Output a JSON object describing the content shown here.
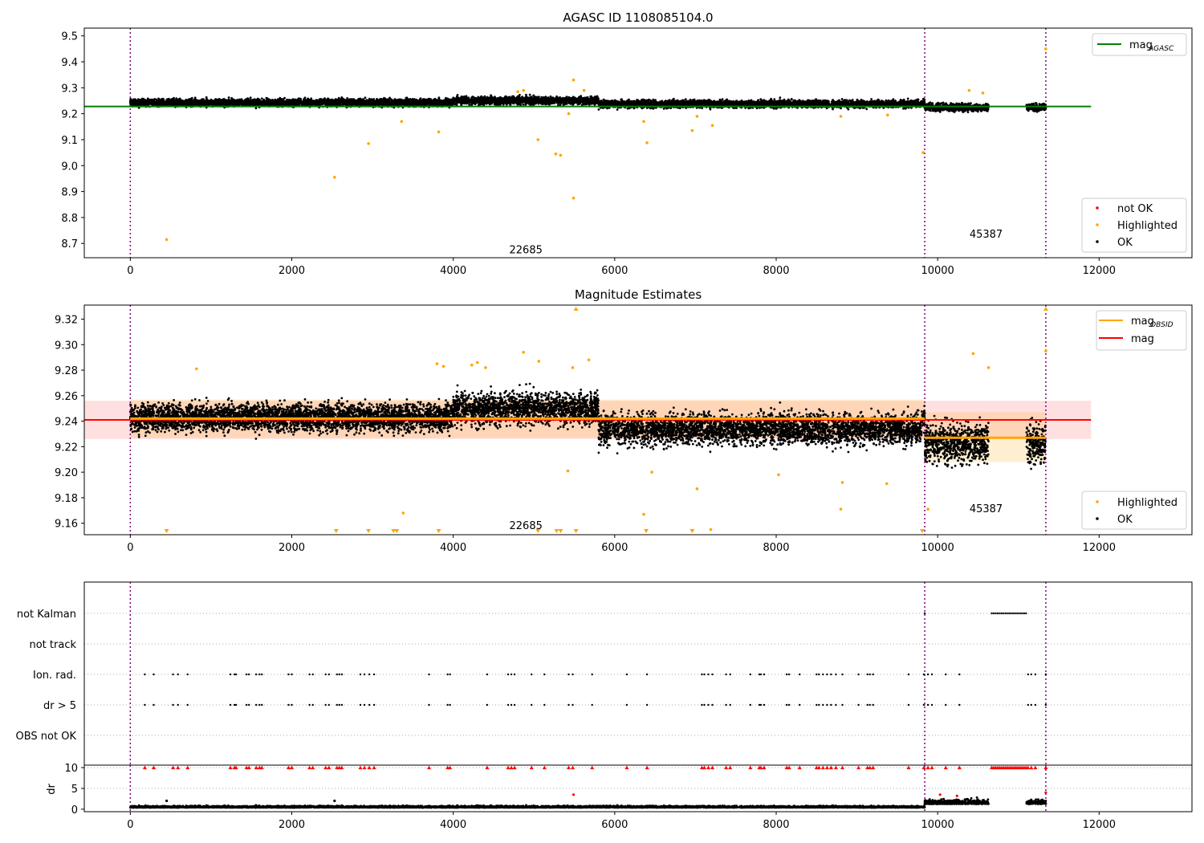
{
  "chart_data": [
    {
      "id": "agasc",
      "type": "scatter",
      "title": "AGASC ID 1108085104.0",
      "xlim": [
        -570,
        13150
      ],
      "ylim": [
        8.645,
        9.53
      ],
      "xticks": [
        0,
        2000,
        4000,
        6000,
        8000,
        10000,
        12000
      ],
      "xtick_labels": [
        "0",
        "2000",
        "4000",
        "6000",
        "8000",
        "10000",
        "12000"
      ],
      "yticks": [
        8.7,
        8.8,
        8.9,
        9.0,
        9.1,
        9.2,
        9.3,
        9.4,
        9.5
      ],
      "ytick_labels": [
        "8.7",
        "8.8",
        "8.9",
        "9.0",
        "9.1",
        "9.2",
        "9.3",
        "9.4",
        "9.5"
      ],
      "vlines": [
        0,
        9840,
        11340
      ],
      "hline": {
        "name_main": "mag",
        "name_sub": "AGASC",
        "y": 9.228,
        "x_start": -570,
        "x_end": 11900,
        "color": "#008000"
      },
      "annotations": [
        {
          "x": 4900,
          "y": 8.675,
          "text": "22685"
        },
        {
          "x": 10600,
          "y": 8.735,
          "text": "45387"
        }
      ],
      "ok_band": {
        "segments": [
          [
            0,
            9840
          ],
          [
            9840,
            10630
          ],
          [
            11100,
            11340
          ]
        ],
        "center": 9.243,
        "spread": 0.028,
        "color": "#000000"
      },
      "legends": {
        "top": [
          {
            "label_main": "mag",
            "label_sub": "AGASC",
            "color": "#008000",
            "kind": "line"
          }
        ],
        "bottom": [
          {
            "label": "not OK",
            "color": "#ff0000",
            "kind": "dot"
          },
          {
            "label": "Highlighted",
            "color": "#ffa500",
            "kind": "dot"
          },
          {
            "label": "OK",
            "color": "#000000",
            "kind": "dot"
          }
        ]
      },
      "highlighted": [
        [
          450,
          8.715
        ],
        [
          2530,
          8.955
        ],
        [
          2950,
          9.085
        ],
        [
          3360,
          9.17
        ],
        [
          3820,
          9.13
        ],
        [
          5050,
          9.1
        ],
        [
          5270,
          9.045
        ],
        [
          5330,
          9.04
        ],
        [
          5490,
          8.875
        ],
        [
          5490,
          9.33
        ],
        [
          5430,
          9.2
        ],
        [
          6360,
          9.17
        ],
        [
          6400,
          9.088
        ],
        [
          6960,
          9.135
        ],
        [
          7210,
          9.155
        ],
        [
          7020,
          9.19
        ],
        [
          9820,
          9.05
        ],
        [
          10390,
          9.29
        ],
        [
          10560,
          9.28
        ],
        [
          8800,
          9.19
        ],
        [
          11340,
          9.45
        ],
        [
          4870,
          9.29
        ],
        [
          4800,
          9.285
        ],
        [
          5620,
          9.29
        ],
        [
          9380,
          9.195
        ]
      ]
    },
    {
      "id": "estimates",
      "type": "scatter",
      "title": "Magnitude Estimates",
      "xlim": [
        -570,
        13150
      ],
      "ylim": [
        9.151,
        9.331
      ],
      "xticks": [
        0,
        2000,
        4000,
        6000,
        8000,
        10000,
        12000
      ],
      "xtick_labels": [
        "0",
        "2000",
        "4000",
        "6000",
        "8000",
        "10000",
        "12000"
      ],
      "yticks": [
        9.16,
        9.18,
        9.2,
        9.22,
        9.24,
        9.26,
        9.28,
        9.3,
        9.32
      ],
      "ytick_labels": [
        "9.16",
        "9.18",
        "9.20",
        "9.22",
        "9.24",
        "9.26",
        "9.28",
        "9.30",
        "9.32"
      ],
      "vlines": [
        0,
        9840,
        11340
      ],
      "mag_line": {
        "name": "mag",
        "y": 9.241,
        "band": [
          9.226,
          9.256
        ],
        "x_start": -570,
        "x_end": 11900,
        "color": "#ff0000"
      },
      "obsid_segments": [
        {
          "x0": 0,
          "x1": 9840,
          "y": 9.242,
          "band": [
            9.227,
            9.257
          ]
        },
        {
          "x0": 9840,
          "x1": 11340,
          "y": 9.227,
          "band": [
            9.208,
            9.247
          ]
        }
      ],
      "annotations": [
        {
          "x": 4900,
          "y": 9.158,
          "text": "22685"
        },
        {
          "x": 10600,
          "y": 9.171,
          "text": "45387"
        }
      ],
      "legends": {
        "top": [
          {
            "label_main": "mag",
            "label_sub": "OBSID",
            "color": "#ffa500",
            "kind": "line"
          },
          {
            "label_main": "mag",
            "label_sub": "",
            "color": "#ff0000",
            "kind": "line"
          }
        ],
        "bottom": [
          {
            "label": "Highlighted",
            "color": "#ffa500",
            "kind": "dot"
          },
          {
            "label": "OK",
            "color": "#000000",
            "kind": "dot"
          }
        ]
      },
      "highlighted": [
        [
          820,
          9.281
        ],
        [
          3380,
          9.168
        ],
        [
          3800,
          9.285
        ],
        [
          3880,
          9.283
        ],
        [
          4230,
          9.284
        ],
        [
          4300,
          9.286
        ],
        [
          4400,
          9.282
        ],
        [
          4870,
          9.294
        ],
        [
          5060,
          9.287
        ],
        [
          5420,
          9.201
        ],
        [
          5480,
          9.282
        ],
        [
          5680,
          9.288
        ],
        [
          6360,
          9.167
        ],
        [
          6460,
          9.2
        ],
        [
          7020,
          9.187
        ],
        [
          7190,
          9.155
        ],
        [
          8030,
          9.198
        ],
        [
          8800,
          9.171
        ],
        [
          8820,
          9.192
        ],
        [
          9370,
          9.191
        ],
        [
          9880,
          9.171
        ],
        [
          10440,
          9.293
        ],
        [
          10630,
          9.282
        ],
        [
          11340,
          9.295
        ]
      ],
      "clipped_low": [
        450,
        2550,
        2950,
        3260,
        3300,
        3820,
        5050,
        5280,
        5330,
        5520,
        6390,
        6960,
        9810
      ],
      "clipped_high": [
        5520,
        11340
      ]
    },
    {
      "id": "flags",
      "type": "scatter",
      "title": "",
      "xlim": [
        -570,
        13150
      ],
      "categories": [
        "not Kalman",
        "not track",
        "Ion. rad.",
        "dr > 5",
        "OBS not OK"
      ],
      "vlines": [
        0,
        9840,
        11340
      ],
      "flag_events": [
        180,
        290,
        530,
        590,
        710,
        1240,
        1290,
        1310,
        1440,
        1470,
        1560,
        1600,
        1630,
        1960,
        2000,
        2220,
        2260,
        2420,
        2460,
        2560,
        2590,
        2620,
        2850,
        2900,
        2960,
        3020,
        3700,
        3930,
        3960,
        4420,
        4680,
        4720,
        4760,
        4970,
        5130,
        5430,
        5480,
        5720,
        6150,
        6400,
        7080,
        7110,
        7160,
        7210,
        7380,
        7430,
        7680,
        7790,
        7810,
        7850,
        8130,
        8160,
        8290,
        8500,
        8530,
        8580,
        8630,
        8680,
        8740,
        8820,
        9020,
        9130,
        9160,
        9200,
        9640,
        9830,
        9880,
        9930,
        10100,
        10270
      ],
      "flag_events_late": [
        11120,
        11160,
        11210,
        11340
      ],
      "not_kalman_range": [
        10670,
        11100
      ]
    },
    {
      "id": "dr",
      "type": "scatter",
      "ylabel": "dr",
      "xlim": [
        -570,
        13150
      ],
      "ylim": [
        -0.6,
        10.6
      ],
      "yticks": [
        0,
        5,
        10
      ],
      "ytick_labels": [
        "0",
        "5",
        "10"
      ],
      "xticks": [
        0,
        2000,
        4000,
        6000,
        8000,
        10000,
        12000
      ],
      "xtick_labels": [
        "0",
        "2000",
        "4000",
        "6000",
        "8000",
        "10000",
        "12000"
      ],
      "vlines": [
        0,
        9840,
        11340
      ],
      "dr_scatter": {
        "center": 0.5,
        "spread": 0.5,
        "late_center": 1.5,
        "late_spread": 1.3
      },
      "dr_outliers": [
        [
          450,
          2.0
        ],
        [
          2530,
          2.0
        ],
        [
          5490,
          3.5
        ],
        [
          10030,
          3.5
        ],
        [
          10240,
          3.2
        ],
        [
          11340,
          4.0
        ]
      ]
    }
  ]
}
